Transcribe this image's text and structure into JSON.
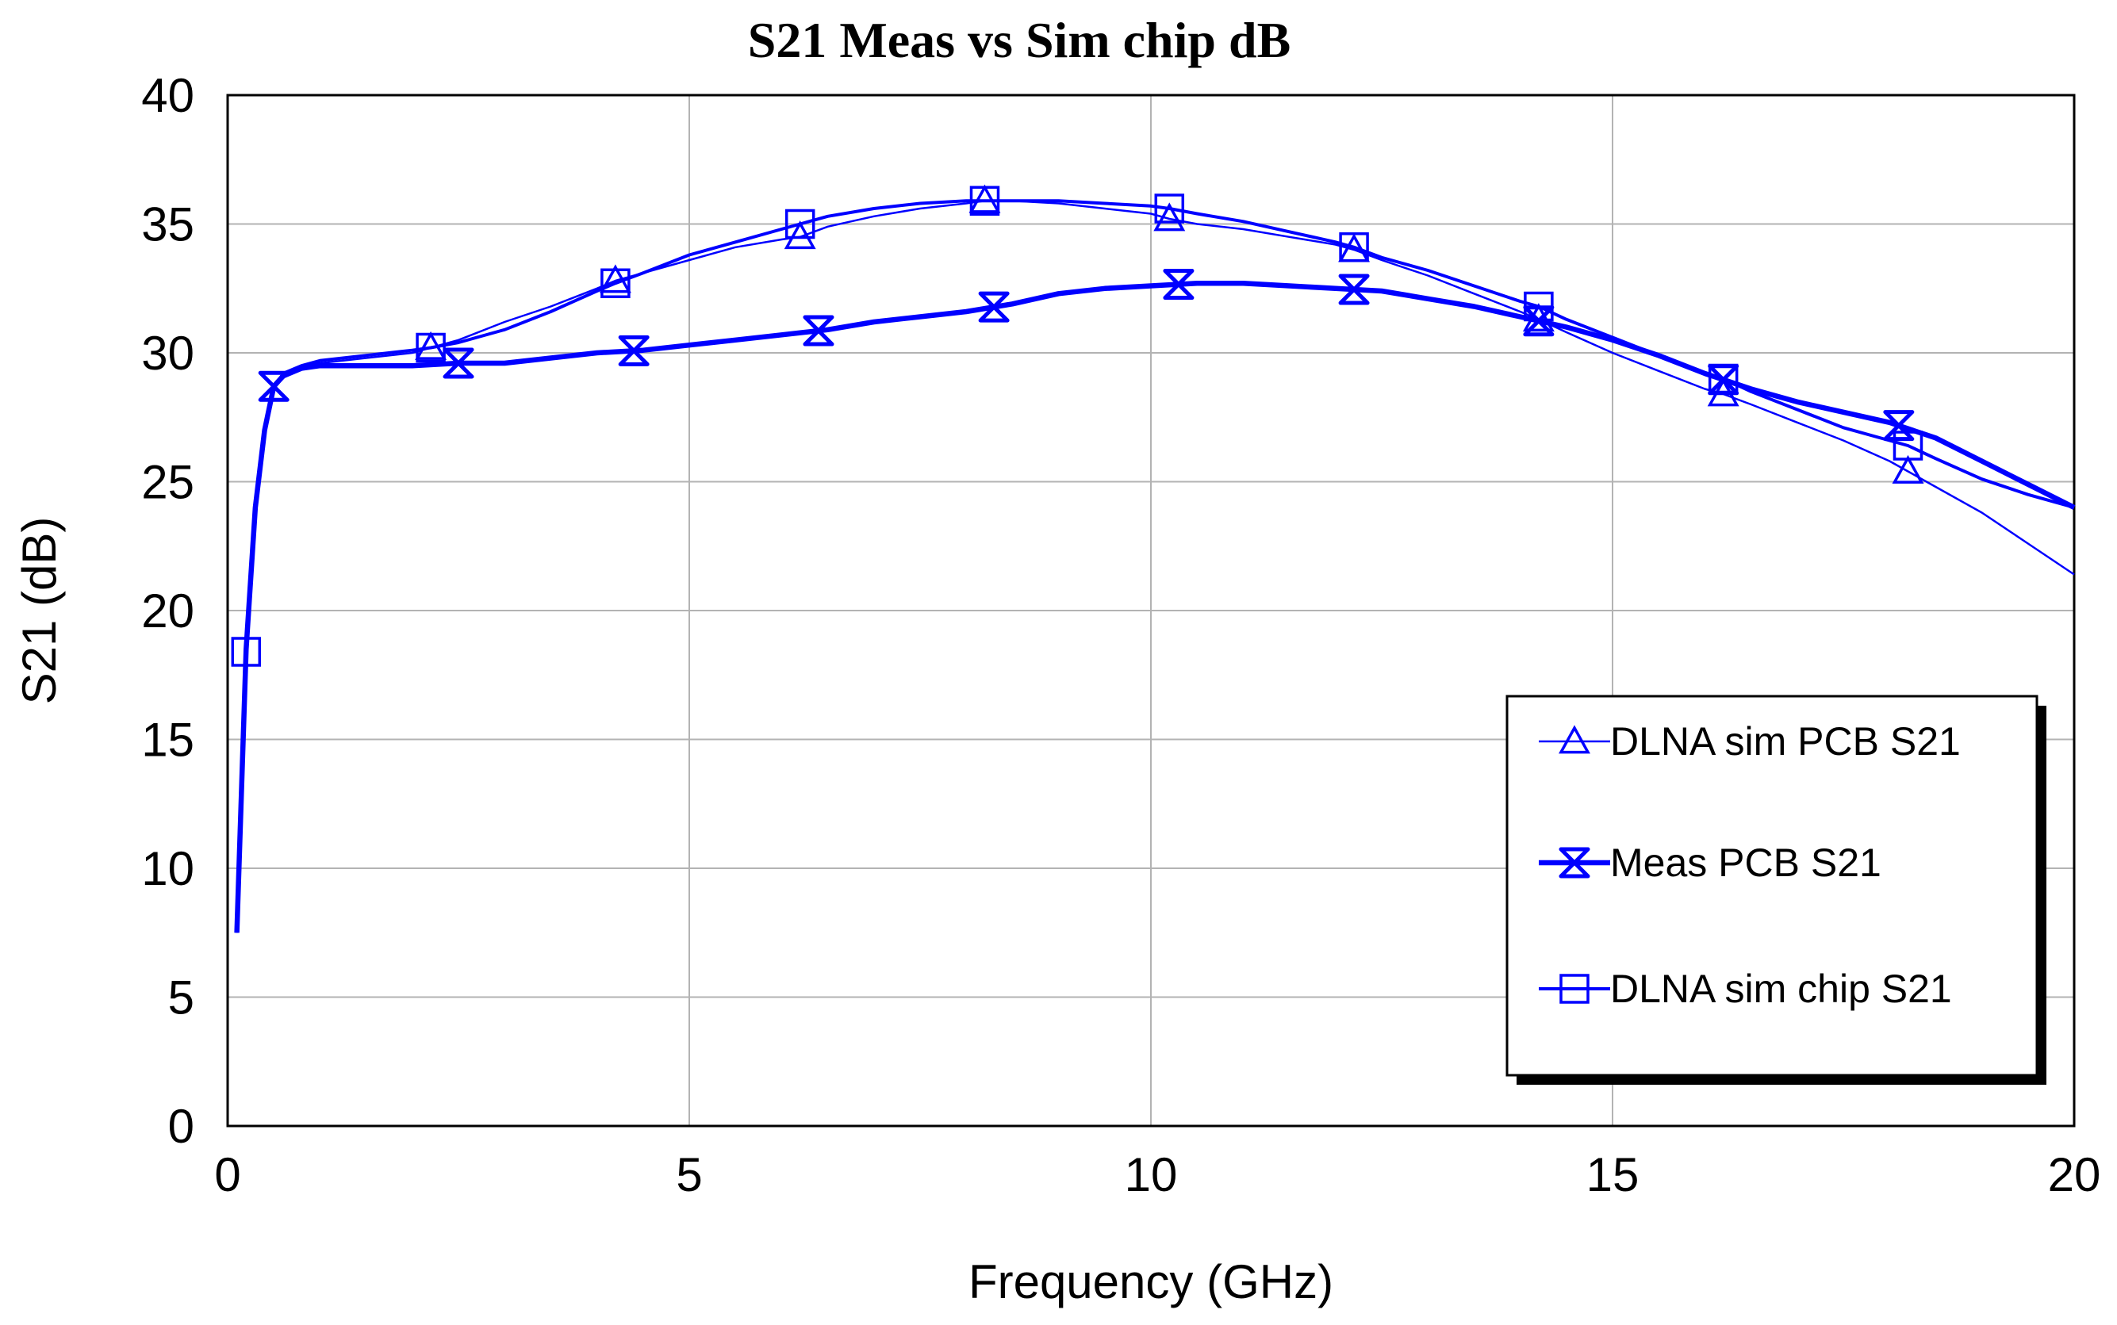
{
  "chart_data": {
    "type": "line",
    "title": "S21 Meas vs Sim chip dB",
    "xlabel": "Frequency (GHz)",
    "ylabel": "S21 (dB)",
    "xlim": [
      0,
      20
    ],
    "ylim": [
      0,
      40
    ],
    "xticks": [
      0,
      5,
      10,
      15,
      20
    ],
    "yticks": [
      0,
      5,
      10,
      15,
      20,
      25,
      30,
      35,
      40
    ],
    "grid": true,
    "legend_position": "bottom-right",
    "series_color": "#0000ff",
    "series": [
      {
        "name": "DLNA sim  PCB S21",
        "marker": "triangle-up",
        "line_weight": "thin",
        "x": [
          0.1,
          0.2,
          0.3,
          0.4,
          0.5,
          0.6,
          0.8,
          1,
          1.5,
          2,
          2.2,
          2.5,
          3,
          3.5,
          4,
          4.2,
          4.5,
          5,
          5.5,
          6,
          6.2,
          6.5,
          7,
          7.5,
          8,
          8.2,
          8.5,
          9,
          9.5,
          10,
          10.2,
          10.5,
          11,
          11.5,
          12,
          12.2,
          12.5,
          13,
          13.5,
          14,
          14.2,
          14.5,
          15,
          15.5,
          16,
          16.2,
          16.5,
          17,
          17.5,
          18,
          18.2,
          18.5,
          19,
          19.5,
          20
        ],
        "y": [
          7.5,
          18.5,
          24,
          27,
          28.6,
          29.2,
          29.5,
          29.6,
          29.8,
          30,
          30.2,
          30.5,
          31.2,
          31.8,
          32.5,
          32.8,
          33.1,
          33.6,
          34.1,
          34.4,
          34.5,
          34.9,
          35.3,
          35.6,
          35.8,
          35.9,
          35.9,
          35.8,
          35.6,
          35.4,
          35.2,
          35.0,
          34.8,
          34.5,
          34.2,
          34.0,
          33.6,
          33.0,
          32.3,
          31.6,
          31.3,
          30.8,
          30.0,
          29.3,
          28.6,
          28.4,
          28.0,
          27.3,
          26.6,
          25.8,
          25.4,
          24.8,
          23.8,
          22.6,
          21.4
        ],
        "marker_x": [
          2.2,
          4.2,
          6.2,
          8.2,
          10.2,
          12.2,
          14.2,
          16.2,
          18.2
        ]
      },
      {
        "name": "Meas PCB S21",
        "marker": "hourglass",
        "line_weight": "thick",
        "x": [
          0.1,
          0.2,
          0.3,
          0.4,
          0.5,
          0.6,
          0.8,
          1,
          1.5,
          2,
          2.5,
          3,
          3.5,
          4,
          4.5,
          5,
          5.5,
          6,
          6.5,
          7,
          7.5,
          8,
          8.5,
          9,
          9.5,
          10,
          10.5,
          11,
          11.5,
          12,
          12.5,
          13,
          13.5,
          14,
          14.5,
          15,
          15.5,
          16,
          16.5,
          17,
          17.5,
          18,
          18.5,
          19,
          19.5,
          20
        ],
        "y": [
          7.5,
          18.5,
          24,
          27,
          28.7,
          29.1,
          29.4,
          29.5,
          29.5,
          29.5,
          29.6,
          29.6,
          29.8,
          30.0,
          30.1,
          30.3,
          30.5,
          30.7,
          30.9,
          31.2,
          31.4,
          31.6,
          31.9,
          32.3,
          32.5,
          32.6,
          32.7,
          32.7,
          32.6,
          32.5,
          32.4,
          32.1,
          31.8,
          31.4,
          31.0,
          30.5,
          29.9,
          29.2,
          28.6,
          28.1,
          27.7,
          27.3,
          26.7,
          25.8,
          24.9,
          24.0
        ],
        "marker_x": [
          0.5,
          2.5,
          4.4,
          6.4,
          8.3,
          10.3,
          12.2,
          14.2,
          16.2,
          18.1
        ]
      },
      {
        "name": "DLNA sim chip S21",
        "marker": "square",
        "line_weight": "medium",
        "x": [
          0.1,
          0.2,
          0.3,
          0.4,
          0.5,
          0.6,
          0.8,
          1,
          1.5,
          2,
          2.2,
          2.5,
          3,
          3.5,
          4,
          4.2,
          4.5,
          5,
          5.5,
          6,
          6.2,
          6.5,
          7,
          7.5,
          8,
          8.2,
          8.5,
          9,
          9.5,
          10,
          10.2,
          10.5,
          11,
          11.5,
          12,
          12.2,
          12.5,
          13,
          13.5,
          14,
          14.2,
          14.5,
          15,
          15.5,
          16,
          16.2,
          16.5,
          17,
          17.5,
          18,
          18.2,
          18.5,
          19,
          19.5,
          20
        ],
        "y": [
          7.5,
          18.4,
          24,
          27,
          28.6,
          29.2,
          29.5,
          29.7,
          29.9,
          30.1,
          30.2,
          30.4,
          30.9,
          31.6,
          32.4,
          32.7,
          33.1,
          33.8,
          34.3,
          34.8,
          35.0,
          35.3,
          35.6,
          35.8,
          35.9,
          35.9,
          35.9,
          35.9,
          35.8,
          35.7,
          35.6,
          35.4,
          35.1,
          34.7,
          34.3,
          34.1,
          33.7,
          33.2,
          32.6,
          32.0,
          31.8,
          31.3,
          30.6,
          29.9,
          29.2,
          29.0,
          28.5,
          27.8,
          27.1,
          26.6,
          26.4,
          25.9,
          25.1,
          24.5,
          24.0
        ],
        "marker_x": [
          0.2,
          2.2,
          4.2,
          6.2,
          8.2,
          10.2,
          12.2,
          14.2,
          16.2,
          18.2
        ]
      }
    ]
  }
}
